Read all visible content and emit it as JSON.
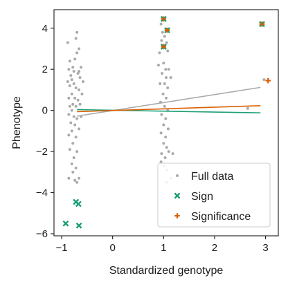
{
  "chart_data": {
    "type": "scatter",
    "xlabel": "Standardized genotype",
    "ylabel": "Phenotype",
    "xlim": [
      -1.15,
      3.25
    ],
    "ylim": [
      -6.1,
      4.9
    ],
    "x_ticks": [
      -1,
      0,
      1,
      2,
      3
    ],
    "y_ticks": [
      -6,
      -4,
      -2,
      0,
      2,
      4
    ],
    "x_tick_labels": [
      "−1",
      "0",
      "1",
      "2",
      "3"
    ],
    "y_tick_labels": [
      "−6",
      "−4",
      "−2",
      "0",
      "2",
      "4"
    ],
    "legend_position": "lower-right",
    "series": [
      {
        "name": "Full data",
        "marker": "dot",
        "color": "#aaaaaa",
        "points": [
          [
            -0.88,
            3.3
          ],
          [
            -0.84,
            2.4
          ],
          [
            -0.86,
            2.0
          ],
          [
            -0.78,
            2.1
          ],
          [
            -0.74,
            2.5
          ],
          [
            -0.7,
            3.8
          ],
          [
            -0.72,
            3.5
          ],
          [
            -0.66,
            3.0
          ],
          [
            -0.7,
            2.8
          ],
          [
            -0.76,
            1.9
          ],
          [
            -0.82,
            1.7
          ],
          [
            -0.68,
            1.8
          ],
          [
            -0.62,
            2.1
          ],
          [
            -0.64,
            1.6
          ],
          [
            -0.8,
            1.5
          ],
          [
            -0.88,
            1.4
          ],
          [
            -0.84,
            1.2
          ],
          [
            -0.76,
            1.3
          ],
          [
            -0.72,
            1.1
          ],
          [
            -0.66,
            1.0
          ],
          [
            -0.58,
            1.4
          ],
          [
            -0.8,
            0.8
          ],
          [
            -0.86,
            0.6
          ],
          [
            -0.74,
            0.6
          ],
          [
            -0.68,
            0.5
          ],
          [
            -0.78,
            0.3
          ],
          [
            -0.84,
            0.2
          ],
          [
            -0.72,
            0.2
          ],
          [
            -0.64,
            0.3
          ],
          [
            -0.8,
            0.0
          ],
          [
            -0.86,
            -0.2
          ],
          [
            -0.76,
            -0.3
          ],
          [
            -0.7,
            -0.4
          ],
          [
            -0.82,
            -0.6
          ],
          [
            -0.74,
            -0.7
          ],
          [
            -0.66,
            -0.9
          ],
          [
            -0.8,
            -1.0
          ],
          [
            -0.86,
            -1.2
          ],
          [
            -0.72,
            -1.3
          ],
          [
            -0.78,
            -1.6
          ],
          [
            -0.84,
            -1.9
          ],
          [
            -0.7,
            -2.0
          ],
          [
            -0.76,
            -2.3
          ],
          [
            -0.8,
            -2.6
          ],
          [
            -0.72,
            -2.8
          ],
          [
            -0.78,
            -3.0
          ],
          [
            -0.86,
            -3.3
          ],
          [
            -0.74,
            -3.4
          ],
          [
            -0.7,
            -3.5
          ],
          [
            -0.66,
            -3.3
          ],
          [
            -0.66,
            1.9
          ],
          [
            -0.6,
            0.8
          ],
          [
            -0.62,
            -0.3
          ],
          [
            0.95,
            4.2
          ],
          [
            0.98,
            3.8
          ],
          [
            1.02,
            3.6
          ],
          [
            0.96,
            3.4
          ],
          [
            1.06,
            3.3
          ],
          [
            0.92,
            2.8
          ],
          [
            1.08,
            2.9
          ],
          [
            0.9,
            2.2
          ],
          [
            1.0,
            2.3
          ],
          [
            1.04,
            2.0
          ],
          [
            1.1,
            2.0
          ],
          [
            0.97,
            1.8
          ],
          [
            1.05,
            1.6
          ],
          [
            1.14,
            1.6
          ],
          [
            0.93,
            1.3
          ],
          [
            1.02,
            1.3
          ],
          [
            1.08,
            1.1
          ],
          [
            0.99,
            0.8
          ],
          [
            1.05,
            0.6
          ],
          [
            0.94,
            0.4
          ],
          [
            1.02,
            0.2
          ],
          [
            1.08,
            0.0
          ],
          [
            0.96,
            -0.2
          ],
          [
            1.04,
            -0.4
          ],
          [
            1.0,
            -0.7
          ],
          [
            1.09,
            -0.9
          ],
          [
            0.95,
            -1.1
          ],
          [
            1.04,
            -1.3
          ],
          [
            1.0,
            -1.6
          ],
          [
            1.06,
            -1.8
          ],
          [
            0.96,
            -2.1
          ],
          [
            1.1,
            -2.0
          ],
          [
            1.03,
            -2.3
          ],
          [
            0.95,
            -2.5
          ],
          [
            1.01,
            -2.7
          ],
          [
            1.07,
            -2.9
          ],
          [
            1.14,
            -3.3
          ],
          [
            1.18,
            -2.1
          ],
          [
            1.06,
            -3.5
          ],
          [
            2.65,
            0.1
          ],
          [
            2.97,
            1.5
          ]
        ]
      },
      {
        "name": "Sign",
        "marker": "x",
        "color": "#1b9e77",
        "points": [
          [
            -0.92,
            -5.5
          ],
          [
            -0.72,
            -4.45
          ],
          [
            -0.67,
            -4.55
          ],
          [
            -0.66,
            -5.6
          ],
          [
            1.0,
            4.45
          ],
          [
            1.07,
            3.9
          ],
          [
            1.0,
            3.1
          ],
          [
            2.93,
            4.2
          ]
        ]
      },
      {
        "name": "Significance",
        "marker": "plus",
        "color": "#d95f02",
        "points": [
          [
            1.0,
            4.45
          ],
          [
            1.07,
            3.9
          ],
          [
            1.0,
            3.1
          ],
          [
            2.93,
            4.2
          ],
          [
            3.05,
            1.45
          ]
        ]
      }
    ],
    "fit_lines": [
      {
        "series": "Full data",
        "color": "#aaaaaa",
        "x": [
          -0.7,
          2.9
        ],
        "y": [
          -0.28,
          1.12
        ]
      },
      {
        "series": "Sign",
        "color": "#1b9e77",
        "x": [
          -0.7,
          2.9
        ],
        "y": [
          0.04,
          -0.12
        ]
      },
      {
        "series": "Significance",
        "color": "#d95f02",
        "x": [
          -0.7,
          2.9
        ],
        "y": [
          -0.06,
          0.23
        ]
      }
    ]
  }
}
